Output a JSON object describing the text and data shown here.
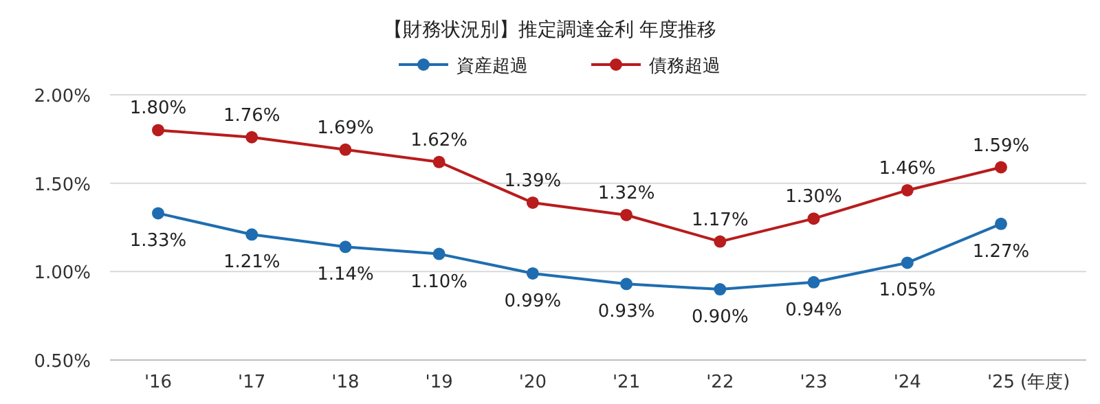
{
  "chart_data": {
    "type": "line",
    "title": "【財務状況別】推定調達金利 年度推移",
    "xlabel": "(年度)",
    "categories": [
      "'16",
      "'17",
      "'18",
      "'19",
      "'20",
      "'21",
      "'22",
      "'23",
      "'24",
      "'25"
    ],
    "series": [
      {
        "name": "資産超過",
        "color": "#1f6db0",
        "values": [
          1.33,
          1.21,
          1.14,
          1.1,
          0.99,
          0.93,
          0.9,
          0.94,
          1.05,
          1.27
        ],
        "value_labels": [
          "1.33%",
          "1.21%",
          "1.14%",
          "1.10%",
          "0.99%",
          "0.93%",
          "0.90%",
          "0.94%",
          "1.05%",
          "1.27%"
        ]
      },
      {
        "name": "債務超過",
        "color": "#b81c1c",
        "values": [
          1.8,
          1.76,
          1.69,
          1.62,
          1.39,
          1.32,
          1.17,
          1.3,
          1.46,
          1.59
        ],
        "value_labels": [
          "1.80%",
          "1.76%",
          "1.69%",
          "1.62%",
          "1.39%",
          "1.32%",
          "1.17%",
          "1.30%",
          "1.46%",
          "1.59%"
        ]
      }
    ],
    "ylim": [
      0.5,
      2.0
    ],
    "yticks": [
      {
        "value": 0.5,
        "label": "0.50%"
      },
      {
        "value": 1.0,
        "label": "1.00%"
      },
      {
        "value": 1.5,
        "label": "1.50%"
      },
      {
        "value": 2.0,
        "label": "2.00%"
      }
    ],
    "grid": "y",
    "legend": "top",
    "marker": "circle",
    "line_style": "solid"
  }
}
